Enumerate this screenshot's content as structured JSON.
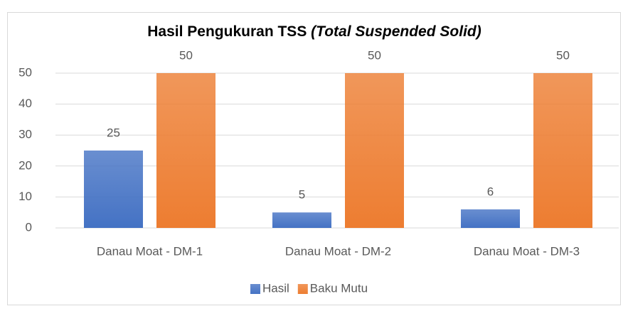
{
  "chart_data": {
    "type": "bar",
    "title": [
      "Hasil Pengukuran TSS",
      "(Total Suspended Solid)"
    ],
    "categories": [
      "Danau Moat - DM-1",
      "Danau Moat - DM-2",
      "Danau Moat - DM-3"
    ],
    "series": [
      {
        "name": "Hasil",
        "color": "#4472c4",
        "values": [
          25,
          5,
          6
        ]
      },
      {
        "name": "Baku Mutu",
        "color": "#ed7d31",
        "values": [
          50,
          50,
          50
        ]
      }
    ],
    "ylim": [
      0,
      50
    ],
    "yticks": [
      0,
      10,
      20,
      30,
      40,
      50
    ],
    "grid": true,
    "legend": "bottom"
  }
}
